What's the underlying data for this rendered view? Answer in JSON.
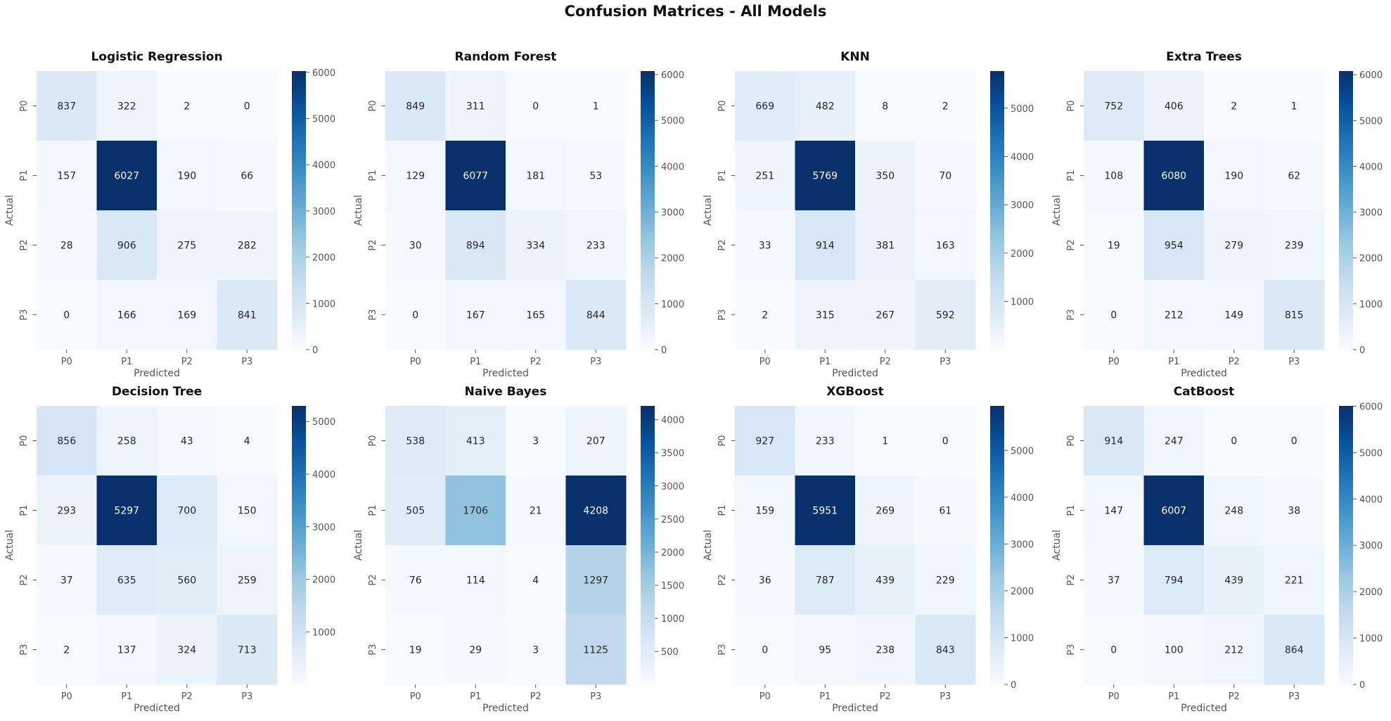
{
  "figure_title": "Confusion Matrices - All Models",
  "chart_data": [
    {
      "type": "heatmap",
      "title": "Logistic Regression",
      "xlabel": "Predicted",
      "ylabel": "Actual",
      "x_categories": [
        "P0",
        "P1",
        "P2",
        "P3"
      ],
      "y_categories": [
        "P0",
        "P1",
        "P2",
        "P3"
      ],
      "values": [
        [
          837,
          322,
          2,
          0
        ],
        [
          157,
          6027,
          190,
          66
        ],
        [
          28,
          906,
          275,
          282
        ],
        [
          0,
          166,
          169,
          841
        ]
      ],
      "colormap": "Blues",
      "vmin": 0,
      "vmax": 6027,
      "colorbar_ticks": [
        0,
        1000,
        2000,
        3000,
        4000,
        5000,
        6000
      ]
    },
    {
      "type": "heatmap",
      "title": "Random Forest",
      "xlabel": "Predicted",
      "ylabel": "Actual",
      "x_categories": [
        "P0",
        "P1",
        "P2",
        "P3"
      ],
      "y_categories": [
        "P0",
        "P1",
        "P2",
        "P3"
      ],
      "values": [
        [
          849,
          311,
          0,
          1
        ],
        [
          129,
          6077,
          181,
          53
        ],
        [
          30,
          894,
          334,
          233
        ],
        [
          0,
          167,
          165,
          844
        ]
      ],
      "colormap": "Blues",
      "vmin": 0,
      "vmax": 6077,
      "colorbar_ticks": [
        0,
        1000,
        2000,
        3000,
        4000,
        5000,
        6000
      ]
    },
    {
      "type": "heatmap",
      "title": "KNN",
      "xlabel": "Predicted",
      "ylabel": "Actual",
      "x_categories": [
        "P0",
        "P1",
        "P2",
        "P3"
      ],
      "y_categories": [
        "P0",
        "P1",
        "P2",
        "P3"
      ],
      "values": [
        [
          669,
          482,
          8,
          2
        ],
        [
          251,
          5769,
          350,
          70
        ],
        [
          33,
          914,
          381,
          163
        ],
        [
          2,
          315,
          267,
          592
        ]
      ],
      "colormap": "Blues",
      "vmin": 2,
      "vmax": 5769,
      "colorbar_ticks": [
        1000,
        2000,
        3000,
        4000,
        5000
      ]
    },
    {
      "type": "heatmap",
      "title": "Extra Trees",
      "xlabel": "Predicted",
      "ylabel": "Actual",
      "x_categories": [
        "P0",
        "P1",
        "P2",
        "P3"
      ],
      "y_categories": [
        "P0",
        "P1",
        "P2",
        "P3"
      ],
      "values": [
        [
          752,
          406,
          2,
          1
        ],
        [
          108,
          6080,
          190,
          62
        ],
        [
          19,
          954,
          279,
          239
        ],
        [
          0,
          212,
          149,
          815
        ]
      ],
      "colormap": "Blues",
      "vmin": 0,
      "vmax": 6080,
      "colorbar_ticks": [
        0,
        1000,
        2000,
        3000,
        4000,
        5000,
        6000
      ]
    },
    {
      "type": "heatmap",
      "title": "Decision Tree",
      "xlabel": "Predicted",
      "ylabel": "Actual",
      "x_categories": [
        "P0",
        "P1",
        "P2",
        "P3"
      ],
      "y_categories": [
        "P0",
        "P1",
        "P2",
        "P3"
      ],
      "values": [
        [
          856,
          258,
          43,
          4
        ],
        [
          293,
          5297,
          700,
          150
        ],
        [
          37,
          635,
          560,
          259
        ],
        [
          2,
          137,
          324,
          713
        ]
      ],
      "colormap": "Blues",
      "vmin": 2,
      "vmax": 5297,
      "colorbar_ticks": [
        1000,
        2000,
        3000,
        4000,
        5000
      ]
    },
    {
      "type": "heatmap",
      "title": "Naive Bayes",
      "xlabel": "Predicted",
      "ylabel": "Actual",
      "x_categories": [
        "P0",
        "P1",
        "P2",
        "P3"
      ],
      "y_categories": [
        "P0",
        "P1",
        "P2",
        "P3"
      ],
      "values": [
        [
          538,
          413,
          3,
          207
        ],
        [
          505,
          1706,
          21,
          4208
        ],
        [
          76,
          114,
          4,
          1297
        ],
        [
          19,
          29,
          3,
          1125
        ]
      ],
      "colormap": "Blues",
      "vmin": 3,
      "vmax": 4208,
      "colorbar_ticks": [
        500,
        1000,
        1500,
        2000,
        2500,
        3000,
        3500,
        4000
      ]
    },
    {
      "type": "heatmap",
      "title": "XGBoost",
      "xlabel": "Predicted",
      "ylabel": "Actual",
      "x_categories": [
        "P0",
        "P1",
        "P2",
        "P3"
      ],
      "y_categories": [
        "P0",
        "P1",
        "P2",
        "P3"
      ],
      "values": [
        [
          927,
          233,
          1,
          0
        ],
        [
          159,
          5951,
          269,
          61
        ],
        [
          36,
          787,
          439,
          229
        ],
        [
          0,
          95,
          238,
          843
        ]
      ],
      "colormap": "Blues",
      "vmin": 0,
      "vmax": 5951,
      "colorbar_ticks": [
        0,
        1000,
        2000,
        3000,
        4000,
        5000
      ]
    },
    {
      "type": "heatmap",
      "title": "CatBoost",
      "xlabel": "Predicted",
      "ylabel": "Actual",
      "x_categories": [
        "P0",
        "P1",
        "P2",
        "P3"
      ],
      "y_categories": [
        "P0",
        "P1",
        "P2",
        "P3"
      ],
      "values": [
        [
          914,
          247,
          0,
          0
        ],
        [
          147,
          6007,
          248,
          38
        ],
        [
          37,
          794,
          439,
          221
        ],
        [
          0,
          100,
          212,
          864
        ]
      ],
      "colormap": "Blues",
      "vmin": 0,
      "vmax": 6007,
      "colorbar_ticks": [
        0,
        1000,
        2000,
        3000,
        4000,
        5000,
        6000
      ]
    }
  ]
}
